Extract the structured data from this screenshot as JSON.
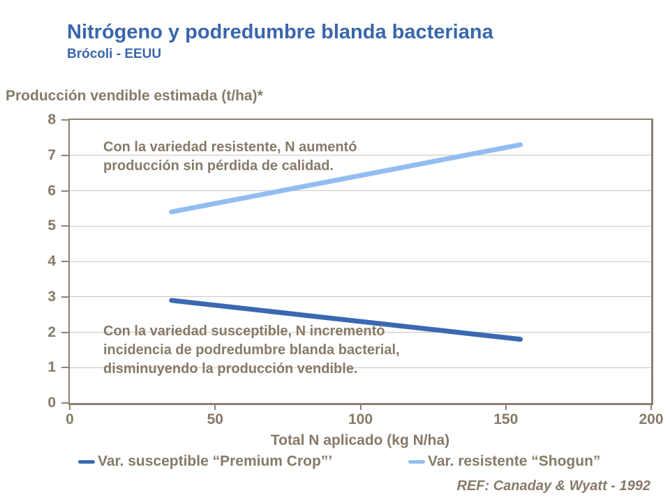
{
  "slide": {
    "title": "Nitrógeno y podredumbre blanda bacteriana",
    "subtitle": "Brócoli - EEUU",
    "reference": "REF: Canaday & Wyatt - 1992"
  },
  "colors": {
    "title_blue": "#3966AC",
    "body_text": "#867A68",
    "axis": "#8C8272",
    "gridline": "#CBC4B8",
    "susceptible_line": "#3A68B2",
    "resistant_line": "#93BDF1"
  },
  "chart_data": {
    "type": "line",
    "title": "Producción vendible estimada (t/ha)*",
    "ylabel": "Producción vendible estimada (t/ha)*",
    "xlabel": "Total N aplicado (kg N/ha)",
    "xlim": [
      0,
      200
    ],
    "ylim": [
      0,
      8
    ],
    "x_ticks": [
      0,
      50,
      100,
      150,
      200
    ],
    "y_ticks": [
      0,
      1,
      2,
      3,
      4,
      5,
      6,
      7,
      8
    ],
    "grid": "horizontal-only",
    "legend_position": "bottom",
    "series": [
      {
        "name": "Var. susceptible “Premium Crop”’",
        "x": [
          35,
          155
        ],
        "y": [
          2.9,
          1.8
        ],
        "color": "#3A68B2"
      },
      {
        "name": "Var. resistente “Shogun”",
        "x": [
          35,
          155
        ],
        "y": [
          5.4,
          7.3
        ],
        "color": "#93BDF1"
      }
    ],
    "annotations": [
      {
        "id": "resistant-note",
        "text": "Con la variedad resistente, N aumentó producción sin pérdida de calidad."
      },
      {
        "id": "susceptible-note",
        "text": "Con la variedad susceptible, N incrementó incidencia de podredumbre blanda bacterial, disminuyendo la producción vendible."
      }
    ]
  }
}
